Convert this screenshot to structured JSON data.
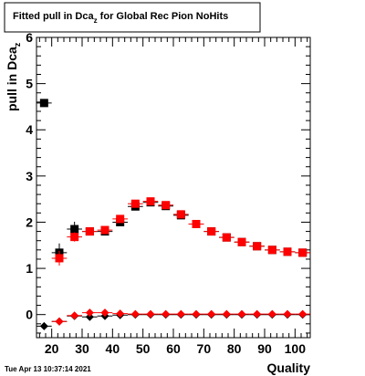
{
  "chart_data": {
    "type": "scatter",
    "title_main": "Fitted pull in Dca",
    "title_sub": "z",
    "title_rest": " for Global Rec Pion NoHits",
    "ylabel_main": "pull in Dca",
    "ylabel_sub": "z",
    "xlabel": "Quality",
    "timestamp": "Tue Apr 13 10:37:14 2021",
    "xlim": [
      15,
      105
    ],
    "ylim": [
      -0.5,
      6
    ],
    "xticks": [
      20,
      30,
      40,
      50,
      60,
      70,
      80,
      90,
      100
    ],
    "yticks": [
      0,
      1,
      2,
      3,
      4,
      5,
      6
    ],
    "series": [
      {
        "marker": "square",
        "color": "#000000",
        "x": [
          17.5,
          22.5,
          27.5,
          32.5,
          37.5,
          42.5,
          47.5,
          52.5,
          57.5,
          62.5,
          67.5,
          72.5,
          77.5,
          82.5,
          87.5,
          92.5,
          97.5,
          102.5
        ],
        "y": [
          4.58,
          1.34,
          1.85,
          1.8,
          1.8,
          2.0,
          2.34,
          2.43,
          2.35,
          2.15,
          1.96,
          1.8,
          1.67,
          1.57,
          1.48,
          1.4,
          1.36,
          1.34
        ],
        "yerr": [
          0,
          0.2,
          0.16,
          0.08,
          0.07,
          0.06,
          0.04,
          0.04,
          0.04,
          0.04,
          0.03,
          0.03,
          0.03,
          0.03,
          0.03,
          0.02,
          0.02,
          0.02
        ]
      },
      {
        "marker": "square",
        "color": "#ff0000",
        "x": [
          22.5,
          27.5,
          32.5,
          37.5,
          42.5,
          47.5,
          52.5,
          57.5,
          62.5,
          67.5,
          72.5,
          77.5,
          82.5,
          87.5,
          92.5,
          97.5,
          102.5
        ],
        "y": [
          1.22,
          1.68,
          1.8,
          1.83,
          2.07,
          2.4,
          2.45,
          2.37,
          2.17,
          1.96,
          1.8,
          1.67,
          1.57,
          1.48,
          1.4,
          1.36,
          1.34
        ],
        "yerr": [
          0.16,
          0.1,
          0.06,
          0.06,
          0.05,
          0.04,
          0.04,
          0.04,
          0.04,
          0.03,
          0.03,
          0.03,
          0.03,
          0.03,
          0.02,
          0.02,
          0.02
        ]
      },
      {
        "marker": "diamond",
        "color": "#000000",
        "x": [
          17.5,
          22.5,
          27.5,
          32.5,
          37.5,
          42.5,
          47.5,
          52.5,
          57.5,
          62.5,
          67.5,
          72.5,
          77.5,
          82.5,
          87.5,
          92.5,
          97.5,
          102.5
        ],
        "y": [
          -0.25,
          -0.15,
          -0.03,
          -0.05,
          -0.03,
          -0.01,
          0.0,
          0.0,
          0.0,
          0.0,
          0.0,
          0.0,
          0.0,
          0.0,
          0.0,
          0.0,
          0.0,
          0.0
        ],
        "yerr": [
          0.05,
          0.04,
          0.03,
          0.02,
          0.02,
          0.02,
          0.01,
          0.01,
          0.01,
          0.01,
          0.01,
          0.01,
          0.01,
          0.01,
          0.01,
          0.01,
          0.01,
          0.01
        ]
      },
      {
        "marker": "diamond",
        "color": "#ff0000",
        "x": [
          22.5,
          27.5,
          32.5,
          37.5,
          42.5,
          47.5,
          52.5,
          57.5,
          62.5,
          67.5,
          72.5,
          77.5,
          82.5,
          87.5,
          92.5,
          97.5,
          102.5
        ],
        "y": [
          -0.15,
          -0.02,
          0.04,
          0.04,
          0.02,
          0.01,
          0.01,
          0.01,
          0.01,
          0.01,
          0.01,
          0.01,
          0.01,
          0.01,
          0.01,
          0.01,
          0.01
        ],
        "yerr": [
          0.04,
          0.03,
          0.02,
          0.02,
          0.02,
          0.01,
          0.01,
          0.01,
          0.01,
          0.01,
          0.01,
          0.01,
          0.01,
          0.01,
          0.01,
          0.01,
          0.01
        ]
      }
    ]
  }
}
